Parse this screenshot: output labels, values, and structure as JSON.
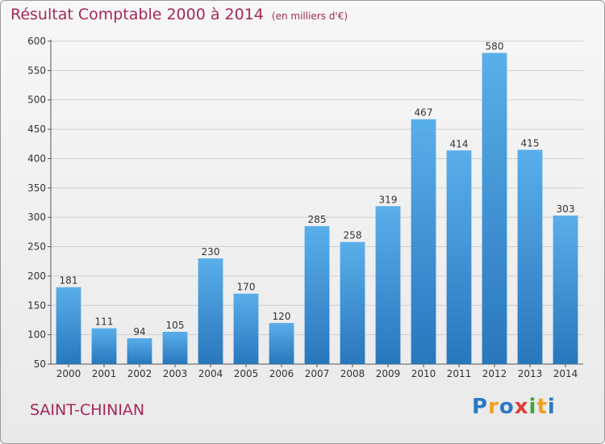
{
  "header": {
    "title": "Résultat Comptable 2000 à 2014",
    "subtitle": "(en milliers d'€)"
  },
  "footer": {
    "place": "SAINT-CHINIAN",
    "logo": "Proxiti"
  },
  "colors": {
    "bar": "#3a8fd4",
    "title": "#a3285a",
    "grid": "#cfcfcf"
  },
  "chart_data": {
    "type": "bar",
    "categories": [
      "2000",
      "2001",
      "2002",
      "2003",
      "2004",
      "2005",
      "2006",
      "2007",
      "2008",
      "2009",
      "2010",
      "2011",
      "2012",
      "2013",
      "2014"
    ],
    "values": [
      181,
      111,
      94,
      105,
      230,
      170,
      120,
      285,
      258,
      319,
      467,
      414,
      580,
      415,
      303
    ],
    "ylim": [
      50,
      600
    ],
    "yticks": [
      50,
      100,
      150,
      200,
      250,
      300,
      350,
      400,
      450,
      500,
      550,
      600
    ],
    "grid": true,
    "data_labels": true
  }
}
